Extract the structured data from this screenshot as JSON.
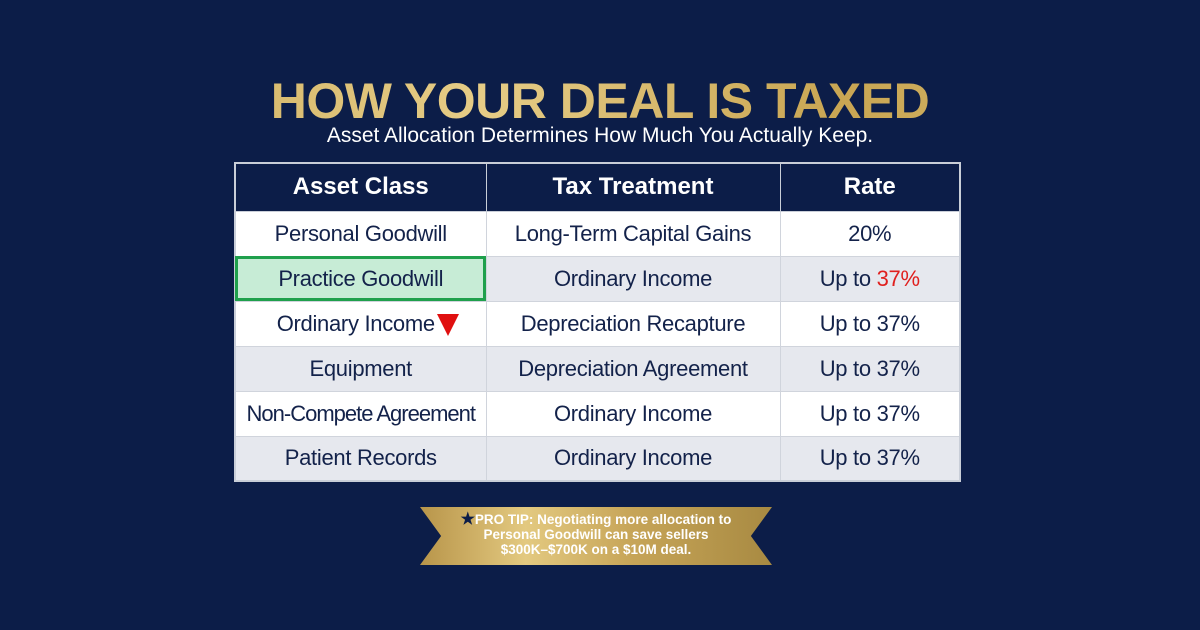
{
  "title": "HOW YOUR DEAL IS TAXED",
  "subtitle": "Asset Allocation Determines How Much You Actually Keep.",
  "table": {
    "headers": [
      "Asset Class",
      "Tax Treatment",
      "Rate"
    ],
    "rows": [
      {
        "asset": "Personal Goodwill",
        "treatment": "Long-Term Capital Gains",
        "rate_prefix": "",
        "rate": "20%"
      },
      {
        "asset": "Practice Goodwill",
        "treatment": "Ordinary Income",
        "rate_prefix": "Up to ",
        "rate": "37%"
      },
      {
        "asset": "Ordinary Income",
        "treatment": "Depreciation Recapture",
        "rate_prefix": "Up to ",
        "rate": "37%"
      },
      {
        "asset": "Equipment",
        "treatment": "Depreciation Agreement",
        "rate_prefix": "Up to ",
        "rate": "37%"
      },
      {
        "asset": "Non-Compete Agreement",
        "treatment": "Ordinary Income",
        "rate_prefix": "Up to ",
        "rate": "37%"
      },
      {
        "asset": "Patient Records",
        "treatment": "Ordinary Income",
        "rate_prefix": "Up to ",
        "rate": "37%"
      }
    ]
  },
  "tip": {
    "icon": "star-icon",
    "line1": "PRO TIP: Negotiating more allocation to",
    "line2": "Personal Goodwill can save sellers",
    "line3": "$300K–$700K on a $10M deal."
  },
  "colors": {
    "background": "#0c1d48",
    "gold": "#d9bd72",
    "highlight": "#c7ecd6",
    "highlight_border": "#1fa04c",
    "alert": "#e0201e"
  }
}
